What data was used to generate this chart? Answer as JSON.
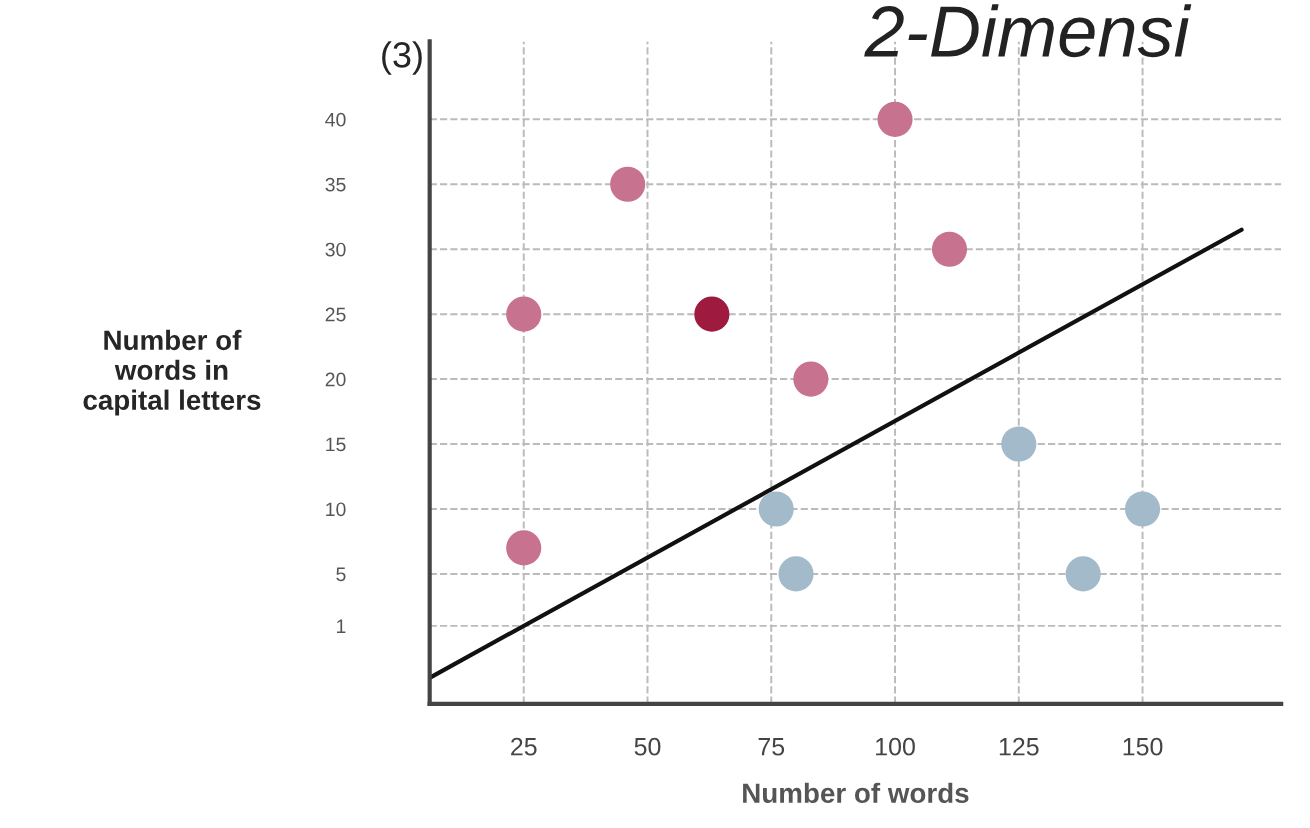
{
  "chart_data": {
    "type": "scatter",
    "title": "2-Dimensi",
    "xlabel": "Number of words",
    "ylabel": "Number of\nwords in\ncapital letters",
    "annotations": [
      "(3)"
    ],
    "series": [
      {
        "color": "#c7728e",
        "x": [
          25,
          25,
          46,
          83,
          100,
          111
        ],
        "values": [
          25,
          7,
          35,
          20,
          40,
          30
        ]
      },
      {
        "color": "#9e1a3f",
        "x": [
          63
        ],
        "values": [
          25
        ]
      },
      {
        "color": "#a3bacb",
        "x": [
          76,
          80,
          125,
          138,
          150
        ],
        "values": [
          10,
          5,
          15,
          5,
          10
        ]
      },
      {
        "type": "line",
        "color": "#111111",
        "marker": "none",
        "x": [
          6,
          170
        ],
        "values": [
          -3,
          31.5
        ]
      }
    ],
    "xlim": [
      6,
      178
    ],
    "ylim": [
      -5,
      46
    ],
    "xticks": [
      25,
      50,
      75,
      100,
      125,
      150
    ],
    "yticks": [
      1,
      5,
      10,
      15,
      20,
      25,
      30,
      35,
      40
    ],
    "grid": true,
    "marker": "circle",
    "legend": false
  }
}
